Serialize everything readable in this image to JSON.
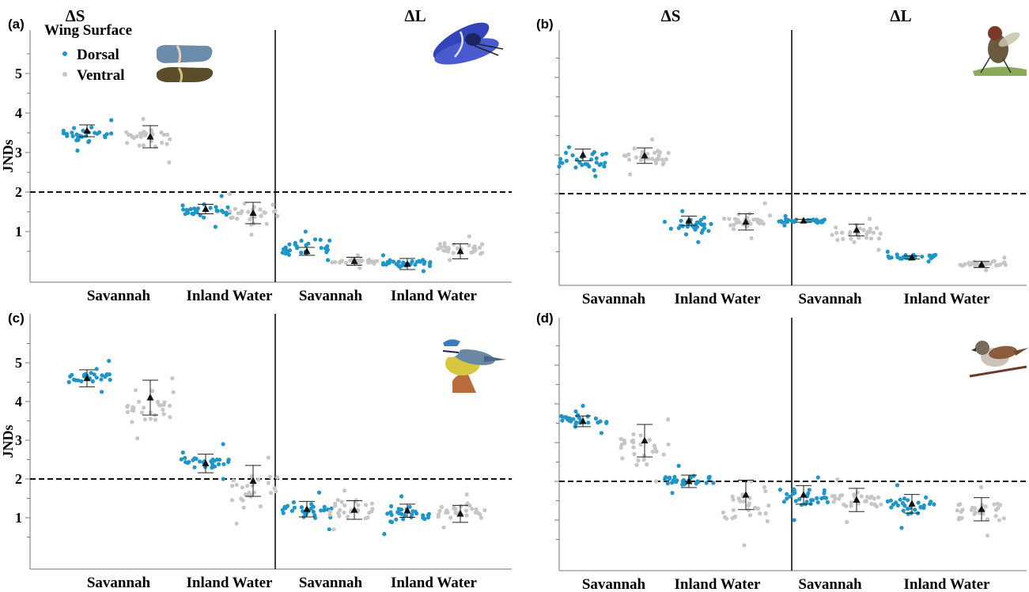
{
  "figure": {
    "colors": {
      "dorsal": "#1f95c8",
      "ventral": "#c6c6c6",
      "mean": "#111111",
      "threshold_line": "#111111"
    },
    "legend": {
      "title": "Wing Surface",
      "items": [
        "Dorsal",
        "Ventral"
      ],
      "placement": "top-left of panel (a)"
    },
    "ylabel": "JNDs",
    "section_labels": [
      "ΔS",
      "ΔL"
    ],
    "x_categories": [
      "Savannah",
      "Inland Water",
      "Savannah",
      "Inland Water"
    ],
    "threshold": 2
  },
  "chart_data": [
    {
      "panel": "(a)",
      "type": "scatter",
      "viewer_icon": "dragonfly-icon",
      "has_legend": true,
      "ylabel": "JNDs",
      "yticks": [
        1,
        2,
        3,
        4,
        5
      ],
      "ylim": [
        0,
        6
      ],
      "section_labels": [
        "ΔS",
        "ΔL"
      ],
      "threshold": 2,
      "categories": [
        "Savannah",
        "Inland Water",
        "Savannah",
        "Inland Water"
      ],
      "series": [
        {
          "name": "Dorsal",
          "means": [
            3.55,
            1.57,
            0.5,
            0.18
          ],
          "ci": [
            0.15,
            0.12,
            0.1,
            0.14
          ],
          "spread": [
            [
              3.05,
              3.82
            ],
            [
              1.12,
              1.9
            ],
            [
              0.28,
              1.0
            ],
            [
              0.0,
              0.4
            ]
          ]
        },
        {
          "name": "Ventral",
          "means": [
            3.4,
            1.47,
            0.25,
            0.5
          ],
          "ci": [
            0.28,
            0.27,
            0.1,
            0.19
          ],
          "spread": [
            [
              2.75,
              3.85
            ],
            [
              0.92,
              1.95
            ],
            [
              0.08,
              0.4
            ],
            [
              0.28,
              0.88
            ]
          ]
        }
      ]
    },
    {
      "panel": "(b)",
      "type": "scatter",
      "viewer_icon": "fly-icon",
      "has_legend": false,
      "ylabel": "",
      "yticks": [
        1,
        2,
        3,
        4,
        5
      ],
      "ylim": [
        0,
        6
      ],
      "section_labels": [
        "ΔS",
        "ΔL"
      ],
      "threshold": 2,
      "categories": [
        "Savannah",
        "Inland Water",
        "Savannah",
        "Inland Water"
      ],
      "series": [
        {
          "name": "Dorsal",
          "means": [
            3.0,
            1.3,
            1.3,
            0.35
          ],
          "ci": [
            0.15,
            0.12,
            0.04,
            0.04
          ],
          "spread": [
            [
              2.45,
              3.2
            ],
            [
              0.75,
              1.55
            ],
            [
              1.18,
              1.42
            ],
            [
              0.25,
              0.5
            ]
          ]
        },
        {
          "name": "Ventral",
          "means": [
            2.98,
            1.27,
            1.06,
            0.17
          ],
          "ci": [
            0.2,
            0.21,
            0.15,
            0.08
          ],
          "spread": [
            [
              2.5,
              3.4
            ],
            [
              0.85,
              1.75
            ],
            [
              0.55,
              1.35
            ],
            [
              0.02,
              0.35
            ]
          ]
        }
      ]
    },
    {
      "panel": "(c)",
      "type": "scatter",
      "viewer_icon": "blue-tit-icon",
      "has_legend": false,
      "ylabel": "JNDs",
      "yticks": [
        1,
        2,
        3,
        4,
        5
      ],
      "ylim": [
        0,
        6
      ],
      "section_labels": [],
      "threshold": 2,
      "categories": [
        "Savannah",
        "Inland Water",
        "Savannah",
        "Inland Water"
      ],
      "series": [
        {
          "name": "Dorsal",
          "means": [
            4.6,
            2.4,
            1.22,
            1.18
          ],
          "ci": [
            0.22,
            0.24,
            0.2,
            0.17
          ],
          "spread": [
            [
              4.25,
              5.05
            ],
            [
              2.0,
              2.9
            ],
            [
              0.7,
              1.65
            ],
            [
              0.58,
              1.55
            ]
          ]
        },
        {
          "name": "Ventral",
          "means": [
            4.1,
            1.95,
            1.2,
            1.1
          ],
          "ci": [
            0.45,
            0.4,
            0.24,
            0.22
          ],
          "spread": [
            [
              3.05,
              4.6
            ],
            [
              0.85,
              2.55
            ],
            [
              0.7,
              1.7
            ],
            [
              0.75,
              1.6
            ]
          ]
        }
      ]
    },
    {
      "panel": "(d)",
      "type": "scatter",
      "viewer_icon": "sparrow-icon",
      "has_legend": false,
      "ylabel": "",
      "yticks": [
        1,
        2,
        3,
        4,
        5
      ],
      "ylim": [
        0,
        6
      ],
      "section_labels": [],
      "threshold": 2,
      "categories": [
        "Savannah",
        "Inland Water",
        "Savannah",
        "Inland Water"
      ],
      "series": [
        {
          "name": "Dorsal",
          "means": [
            3.55,
            2.0,
            1.65,
            1.42
          ],
          "ci": [
            0.14,
            0.16,
            0.24,
            0.24
          ],
          "spread": [
            [
              3.25,
              3.95
            ],
            [
              1.7,
              2.4
            ],
            [
              1.0,
              2.1
            ],
            [
              0.8,
              1.9
            ]
          ]
        },
        {
          "name": "Ventral",
          "means": [
            3.05,
            1.65,
            1.52,
            1.28
          ],
          "ci": [
            0.42,
            0.38,
            0.3,
            0.3
          ],
          "spread": [
            [
              2.0,
              3.6
            ],
            [
              0.35,
              2.0
            ],
            [
              0.95,
              2.05
            ],
            [
              0.6,
              1.85
            ]
          ]
        }
      ]
    }
  ]
}
